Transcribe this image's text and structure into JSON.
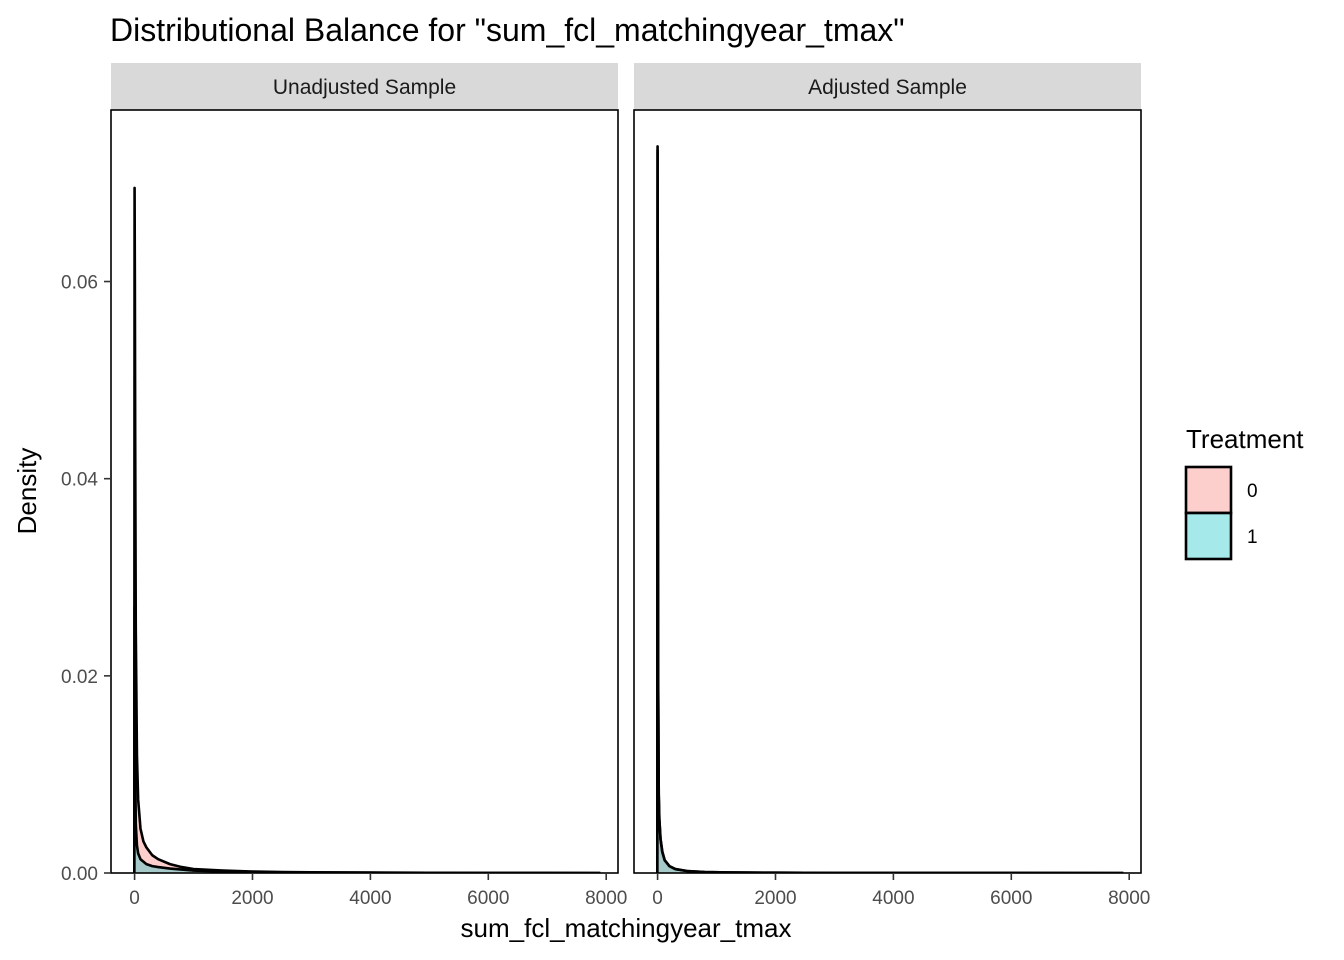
{
  "chart_data": {
    "type": "area",
    "title": "Distributional Balance for \"sum_fcl_matchingyear_tmax\"",
    "xlabel": "sum_fcl_matchingyear_tmax",
    "ylabel": "Density",
    "xlim": [
      -400,
      8200
    ],
    "ylim": [
      0,
      0.0774
    ],
    "x_ticks": [
      0,
      2000,
      4000,
      6000,
      8000
    ],
    "x_tick_labels": [
      "0",
      "2000",
      "4000",
      "6000",
      "8000"
    ],
    "y_ticks": [
      0,
      0.02,
      0.04,
      0.06
    ],
    "y_tick_labels": [
      "0.00",
      "0.02",
      "0.04",
      "0.06"
    ],
    "grid": false,
    "legend": {
      "title": "Treatment",
      "placement": "right",
      "entries": [
        {
          "label": "0",
          "color": "#F8766D"
        },
        {
          "label": "1",
          "color": "#00BFC4"
        }
      ]
    },
    "fill_alpha": 0.35,
    "panels": [
      {
        "strip_label": "Unadjusted Sample",
        "series": [
          {
            "name": "0",
            "color": "#F8766D",
            "x": [
              -5,
              0,
              5,
              10,
              20,
              40,
              60,
              100,
              150,
              200,
              300,
              400,
              600,
              800,
              1000,
              1500,
              2000,
              2500,
              3000,
              4000,
              5000,
              6000,
              7000,
              7900
            ],
            "y": [
              0,
              0.0695,
              0.06,
              0.045,
              0.025,
              0.012,
              0.0075,
              0.0045,
              0.0032,
              0.0026,
              0.0018,
              0.0014,
              0.0009,
              0.0006,
              0.0004,
              0.00025,
              0.00015,
              0.0001,
              7e-05,
              4e-05,
              2e-05,
              1e-05,
              5e-06,
              0
            ]
          },
          {
            "name": "1",
            "color": "#00BFC4",
            "x": [
              -5,
              0,
              5,
              10,
              20,
              40,
              60,
              100,
              200,
              300,
              400,
              600,
              800,
              1000,
              1500,
              2000,
              3000,
              4000,
              5000,
              6000,
              7000,
              7900
            ],
            "y": [
              0,
              0.027,
              0.02,
              0.012,
              0.005,
              0.0028,
              0.002,
              0.0014,
              0.0009,
              0.0007,
              0.0006,
              0.00045,
              0.00035,
              0.00025,
              0.00015,
              0.0001,
              5e-05,
              3e-05,
              2e-05,
              1e-05,
              5e-06,
              0
            ]
          }
        ]
      },
      {
        "strip_label": "Adjusted Sample",
        "series": [
          {
            "name": "0",
            "color": "#F8766D",
            "x": [
              -5,
              0,
              3,
              6,
              10,
              20,
              30,
              50,
              80,
              120,
              200,
              300,
              500,
              800,
              1200,
              2000,
              3000,
              5000,
              7900
            ],
            "y": [
              0,
              0.0737,
              0.06,
              0.04,
              0.02,
              0.008,
              0.0055,
              0.0035,
              0.0022,
              0.0013,
              0.0007,
              0.0004,
              0.0002,
              0.0001,
              6e-05,
              3e-05,
              1e-05,
              4e-06,
              0
            ]
          },
          {
            "name": "1",
            "color": "#00BFC4",
            "x": [
              -5,
              0,
              3,
              6,
              10,
              20,
              30,
              50,
              80,
              120,
              200,
              300,
              500,
              800,
              1200,
              2000,
              3000,
              5000,
              7900
            ],
            "y": [
              0,
              0.0733,
              0.059,
              0.039,
              0.019,
              0.0078,
              0.0054,
              0.0034,
              0.0021,
              0.0013,
              0.0007,
              0.0004,
              0.0002,
              0.0001,
              6e-05,
              3e-05,
              1e-05,
              4e-06,
              0
            ]
          }
        ]
      }
    ]
  }
}
